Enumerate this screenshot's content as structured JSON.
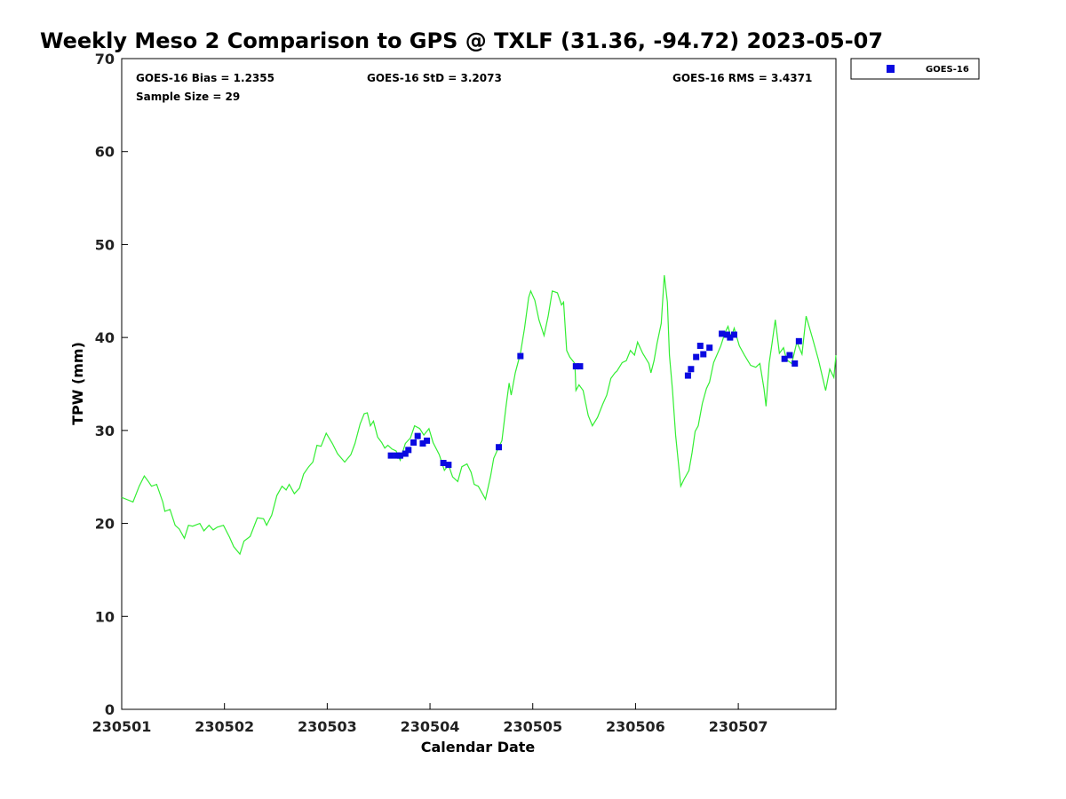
{
  "chart_data": {
    "type": "scatter",
    "title": "Weekly Meso 2 Comparison to GPS @ TXLF (31.36, -94.72) 2023-05-07",
    "xlabel": "Calendar Date",
    "ylabel": "TPW (mm)",
    "xlim": [
      0,
      6.95
    ],
    "ylim": [
      0,
      70
    ],
    "x_units": "days since 230501",
    "xticks": [
      {
        "v": 0,
        "label": "230501"
      },
      {
        "v": 1,
        "label": "230502"
      },
      {
        "v": 2,
        "label": "230503"
      },
      {
        "v": 3,
        "label": "230504"
      },
      {
        "v": 4,
        "label": "230505"
      },
      {
        "v": 5,
        "label": "230506"
      },
      {
        "v": 6,
        "label": "230507"
      }
    ],
    "yticks": [
      0,
      10,
      20,
      30,
      40,
      50,
      60,
      70
    ],
    "grid": false,
    "legend": {
      "placement": "top-right outside",
      "entries": [
        "GOES-16"
      ]
    },
    "stats": {
      "bias": "GOES-16 Bias = 1.2355",
      "std": "GOES-16 StD = 3.2073",
      "rms": "GOES-16 RMS = 3.4371",
      "sample": "Sample Size = 29"
    },
    "colors": {
      "gps": "#33ee33",
      "goes": "#0a0ae0"
    },
    "series": [
      {
        "name": "GPS",
        "type": "line",
        "points": [
          [
            0.0,
            22.8
          ],
          [
            0.11,
            22.3
          ],
          [
            0.17,
            24.0
          ],
          [
            0.22,
            25.1
          ],
          [
            0.26,
            24.5
          ],
          [
            0.29,
            24.0
          ],
          [
            0.34,
            24.2
          ],
          [
            0.4,
            22.3
          ],
          [
            0.42,
            21.3
          ],
          [
            0.47,
            21.5
          ],
          [
            0.52,
            19.8
          ],
          [
            0.56,
            19.4
          ],
          [
            0.61,
            18.4
          ],
          [
            0.65,
            19.8
          ],
          [
            0.69,
            19.7
          ],
          [
            0.76,
            20.0
          ],
          [
            0.8,
            19.2
          ],
          [
            0.85,
            19.8
          ],
          [
            0.89,
            19.3
          ],
          [
            0.93,
            19.6
          ],
          [
            0.99,
            19.8
          ],
          [
            1.05,
            18.5
          ],
          [
            1.09,
            17.5
          ],
          [
            1.15,
            16.7
          ],
          [
            1.19,
            18.1
          ],
          [
            1.25,
            18.6
          ],
          [
            1.32,
            20.6
          ],
          [
            1.38,
            20.5
          ],
          [
            1.41,
            19.8
          ],
          [
            1.46,
            20.9
          ],
          [
            1.51,
            23.0
          ],
          [
            1.56,
            24.0
          ],
          [
            1.6,
            23.6
          ],
          [
            1.63,
            24.2
          ],
          [
            1.68,
            23.2
          ],
          [
            1.73,
            23.8
          ],
          [
            1.77,
            25.3
          ],
          [
            1.82,
            26.1
          ],
          [
            1.86,
            26.6
          ],
          [
            1.9,
            28.4
          ],
          [
            1.94,
            28.3
          ],
          [
            1.99,
            29.7
          ],
          [
            2.05,
            28.6
          ],
          [
            2.1,
            27.5
          ],
          [
            2.17,
            26.6
          ],
          [
            2.23,
            27.4
          ],
          [
            2.27,
            28.6
          ],
          [
            2.32,
            30.7
          ],
          [
            2.36,
            31.8
          ],
          [
            2.39,
            31.9
          ],
          [
            2.42,
            30.5
          ],
          [
            2.45,
            31.0
          ],
          [
            2.49,
            29.3
          ],
          [
            2.53,
            28.7
          ],
          [
            2.56,
            28.1
          ],
          [
            2.59,
            28.4
          ],
          [
            2.63,
            28.0
          ],
          [
            2.67,
            27.8
          ],
          [
            2.71,
            26.8
          ],
          [
            2.76,
            28.6
          ],
          [
            2.81,
            29.2
          ],
          [
            2.85,
            30.5
          ],
          [
            2.9,
            30.2
          ],
          [
            2.94,
            29.5
          ],
          [
            2.99,
            30.2
          ],
          [
            3.03,
            28.7
          ],
          [
            3.09,
            27.4
          ],
          [
            3.14,
            25.7
          ],
          [
            3.18,
            26.3
          ],
          [
            3.22,
            25.0
          ],
          [
            3.27,
            24.5
          ],
          [
            3.31,
            26.1
          ],
          [
            3.36,
            26.4
          ],
          [
            3.4,
            25.5
          ],
          [
            3.43,
            24.2
          ],
          [
            3.47,
            24.0
          ],
          [
            3.51,
            23.2
          ],
          [
            3.54,
            22.6
          ],
          [
            3.59,
            25.1
          ],
          [
            3.62,
            27.0
          ],
          [
            3.66,
            28.0
          ],
          [
            3.7,
            28.9
          ],
          [
            3.74,
            32.6
          ],
          [
            3.77,
            35.1
          ],
          [
            3.79,
            33.8
          ],
          [
            3.83,
            36.2
          ],
          [
            3.88,
            38.3
          ],
          [
            3.92,
            41.0
          ],
          [
            3.96,
            44.3
          ],
          [
            3.98,
            45.0
          ],
          [
            4.02,
            44.0
          ],
          [
            4.06,
            41.9
          ],
          [
            4.11,
            40.2
          ],
          [
            4.15,
            42.3
          ],
          [
            4.19,
            45.0
          ],
          [
            4.24,
            44.8
          ],
          [
            4.28,
            43.5
          ],
          [
            4.3,
            43.8
          ],
          [
            4.33,
            38.6
          ],
          [
            4.36,
            37.9
          ],
          [
            4.41,
            37.2
          ],
          [
            4.42,
            34.3
          ],
          [
            4.45,
            34.9
          ],
          [
            4.49,
            34.3
          ],
          [
            4.54,
            31.6
          ],
          [
            4.58,
            30.5
          ],
          [
            4.63,
            31.4
          ],
          [
            4.68,
            32.8
          ],
          [
            4.72,
            33.8
          ],
          [
            4.76,
            35.6
          ],
          [
            4.8,
            36.2
          ],
          [
            4.82,
            36.4
          ],
          [
            4.87,
            37.3
          ],
          [
            4.91,
            37.5
          ],
          [
            4.95,
            38.6
          ],
          [
            4.99,
            38.1
          ],
          [
            5.02,
            39.5
          ],
          [
            5.07,
            38.3
          ],
          [
            5.13,
            37.2
          ],
          [
            5.15,
            36.2
          ],
          [
            5.18,
            37.5
          ],
          [
            5.21,
            39.4
          ],
          [
            5.25,
            41.5
          ],
          [
            5.28,
            46.7
          ],
          [
            5.31,
            43.8
          ],
          [
            5.33,
            38.1
          ],
          [
            5.36,
            34.3
          ],
          [
            5.39,
            29.5
          ],
          [
            5.44,
            24.0
          ],
          [
            5.47,
            24.7
          ],
          [
            5.52,
            25.7
          ],
          [
            5.55,
            27.6
          ],
          [
            5.58,
            29.9
          ],
          [
            5.61,
            30.5
          ],
          [
            5.65,
            32.9
          ],
          [
            5.69,
            34.5
          ],
          [
            5.72,
            35.2
          ],
          [
            5.76,
            37.3
          ],
          [
            5.83,
            39.1
          ],
          [
            5.87,
            40.5
          ],
          [
            5.9,
            41.2
          ],
          [
            5.93,
            40.0
          ],
          [
            5.96,
            41.0
          ],
          [
            6.01,
            39.1
          ],
          [
            6.06,
            38.1
          ],
          [
            6.12,
            37.0
          ],
          [
            6.17,
            36.8
          ],
          [
            6.21,
            37.2
          ],
          [
            6.25,
            34.5
          ],
          [
            6.27,
            32.6
          ],
          [
            6.3,
            37.2
          ],
          [
            6.33,
            39.5
          ],
          [
            6.36,
            41.9
          ],
          [
            6.4,
            38.3
          ],
          [
            6.44,
            38.9
          ],
          [
            6.47,
            37.6
          ],
          [
            6.52,
            37.2
          ],
          [
            6.57,
            39.5
          ],
          [
            6.62,
            38.2
          ],
          [
            6.66,
            42.3
          ],
          [
            6.72,
            40.0
          ],
          [
            6.78,
            37.6
          ],
          [
            6.85,
            34.3
          ],
          [
            6.89,
            36.6
          ],
          [
            6.93,
            35.7
          ],
          [
            6.95,
            38.1
          ]
        ]
      },
      {
        "name": "GOES-16",
        "type": "scatter",
        "points": [
          [
            2.62,
            27.3
          ],
          [
            2.68,
            27.3
          ],
          [
            2.71,
            27.3
          ],
          [
            2.76,
            27.5
          ],
          [
            2.79,
            27.9
          ],
          [
            2.84,
            28.7
          ],
          [
            2.88,
            29.4
          ],
          [
            2.93,
            28.6
          ],
          [
            2.97,
            28.9
          ],
          [
            3.13,
            26.5
          ],
          [
            3.18,
            26.3
          ],
          [
            3.67,
            28.2
          ],
          [
            3.88,
            38.0
          ],
          [
            4.42,
            36.9
          ],
          [
            4.46,
            36.9
          ],
          [
            5.51,
            35.9
          ],
          [
            5.54,
            36.6
          ],
          [
            5.59,
            37.9
          ],
          [
            5.63,
            39.1
          ],
          [
            5.66,
            38.2
          ],
          [
            5.72,
            38.9
          ],
          [
            5.84,
            40.4
          ],
          [
            5.89,
            40.3
          ],
          [
            5.92,
            40.0
          ],
          [
            5.96,
            40.3
          ],
          [
            6.45,
            37.7
          ],
          [
            6.5,
            38.1
          ],
          [
            6.55,
            37.2
          ],
          [
            6.59,
            39.6
          ]
        ]
      }
    ]
  }
}
